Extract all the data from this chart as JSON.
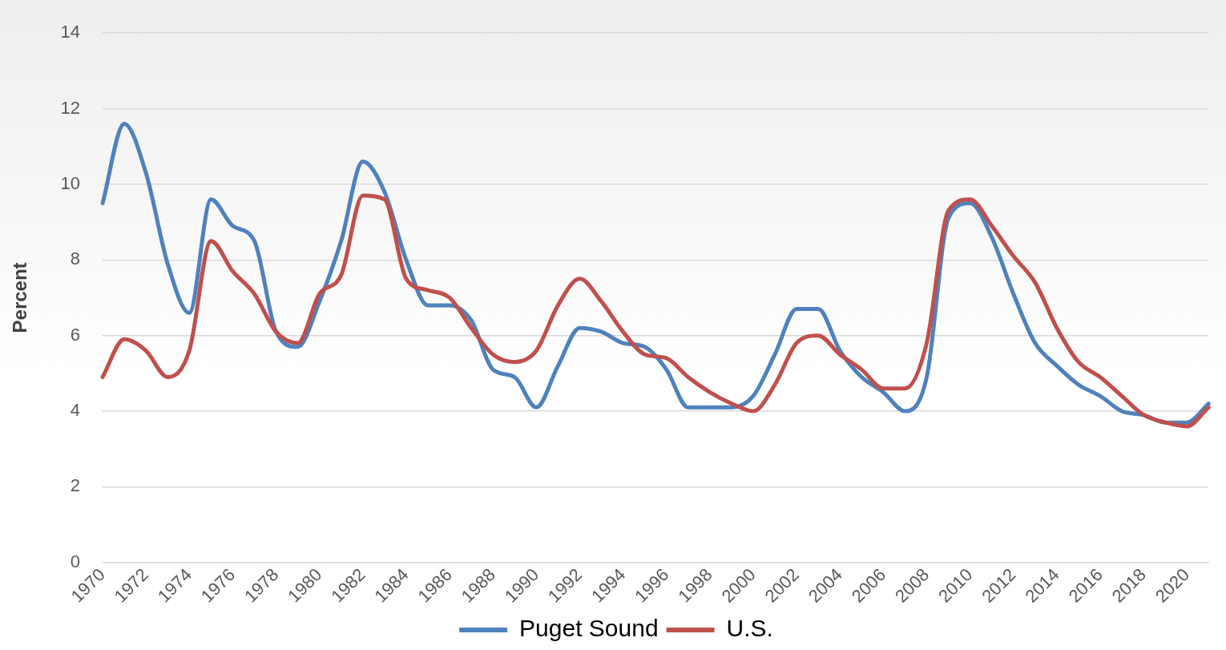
{
  "chart_data": {
    "type": "line",
    "ylabel": "Percent",
    "categories": [
      "1970",
      null,
      "1972",
      null,
      "1974",
      null,
      "1976",
      null,
      "1978",
      null,
      "1980",
      null,
      "1982",
      null,
      "1984",
      null,
      "1986",
      null,
      "1988",
      null,
      "1990",
      null,
      "1992",
      null,
      "1994",
      null,
      "1996",
      null,
      "1998",
      null,
      "2000",
      null,
      "2002",
      null,
      "2004",
      null,
      "2006",
      null,
      "2008",
      null,
      "2010",
      null,
      "2012",
      null,
      "2014",
      null,
      "2016",
      null,
      "2018",
      null,
      "2020",
      null
    ],
    "series": [
      {
        "name": "Puget Sound",
        "color": "#4f81bd",
        "values": [
          9.5,
          11.6,
          10.3,
          7.9,
          6.6,
          9.6,
          8.9,
          8.5,
          6.1,
          5.7,
          6.9,
          8.5,
          10.6,
          9.8,
          8.0,
          6.8,
          6.8,
          6.4,
          5.1,
          4.9,
          4.1,
          5.2,
          6.2,
          6.1,
          5.8,
          5.7,
          5.1,
          4.1,
          4.1,
          4.1,
          4.4,
          5.5,
          6.7,
          6.7,
          5.6,
          4.9,
          4.5,
          4.0,
          4.9,
          9.1,
          9.5,
          8.6,
          7.1,
          5.8,
          5.2,
          4.7,
          4.4,
          4.0,
          3.9,
          3.7,
          3.7,
          4.2
        ]
      },
      {
        "name": "U.S.",
        "color": "#c0504d",
        "values": [
          4.9,
          5.9,
          5.6,
          4.9,
          5.6,
          8.5,
          7.7,
          7.1,
          6.1,
          5.8,
          7.1,
          7.6,
          9.7,
          9.6,
          7.5,
          7.2,
          7.0,
          6.2,
          5.5,
          5.3,
          5.6,
          6.8,
          7.5,
          6.9,
          6.1,
          5.5,
          5.4,
          4.9,
          4.5,
          4.2,
          4.0,
          4.7,
          5.8,
          6.0,
          5.5,
          5.1,
          4.6,
          4.6,
          5.8,
          9.3,
          9.6,
          8.9,
          8.1,
          7.4,
          6.2,
          5.3,
          4.9,
          4.4,
          3.9,
          3.7,
          3.6,
          4.1
        ]
      }
    ],
    "ylim": [
      0,
      14
    ],
    "yticks": [
      0,
      2,
      4,
      6,
      8,
      10,
      12,
      14
    ],
    "grid": "y",
    "legend": "bottom",
    "marker": "none",
    "line_style": "solid"
  }
}
